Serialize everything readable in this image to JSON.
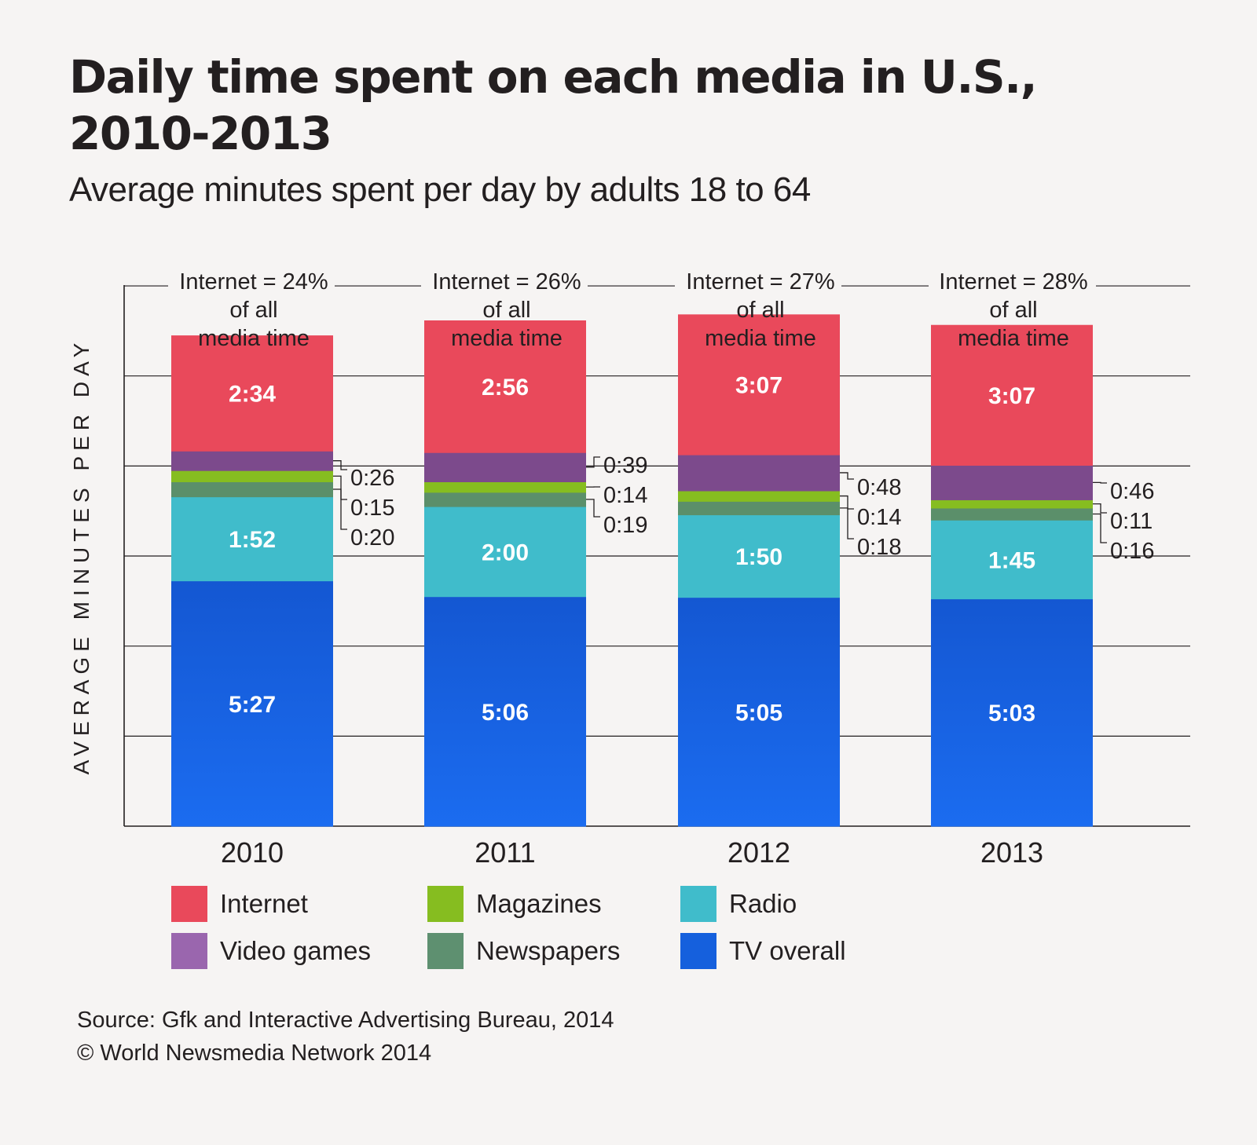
{
  "title": "Daily time spent on each media in U.S., 2010-2013",
  "subtitle": "Average minutes spent per day by adults 18 to 64",
  "y_axis_label": "AVERAGE MINUTES PER DAY",
  "chart_data": {
    "type": "bar",
    "stacked": true,
    "title": "Daily time spent on each media in U.S., 2010-2013",
    "subtitle": "Average minutes spent per day by adults 18 to 64",
    "ylabel": "AVERAGE MINUTES PER DAY",
    "xlabel": "",
    "units": "minutes",
    "categories": [
      "2010",
      "2011",
      "2012",
      "2013"
    ],
    "ylim": [
      0,
      720
    ],
    "gridline_step": 120,
    "grid": true,
    "series": [
      {
        "name": "TV overall",
        "color": "#1560dd",
        "values": [
          327,
          306,
          305,
          303
        ],
        "labels": [
          "5:27",
          "5:06",
          "5:05",
          "5:03"
        ]
      },
      {
        "name": "Radio",
        "color": "#40bccb",
        "values": [
          112,
          120,
          110,
          105
        ],
        "labels": [
          "1:52",
          "2:00",
          "1:50",
          "1:45"
        ]
      },
      {
        "name": "Newspapers",
        "color": "#5b8f6a",
        "values": [
          20,
          19,
          18,
          16
        ],
        "labels": [
          "0:20",
          "0:19",
          "0:18",
          "0:16"
        ]
      },
      {
        "name": "Magazines",
        "color": "#86bd20",
        "values": [
          15,
          14,
          14,
          11
        ],
        "labels": [
          "0:15",
          "0:14",
          "0:14",
          "0:11"
        ]
      },
      {
        "name": "Video games",
        "color": "#7c4a8c",
        "values": [
          26,
          39,
          48,
          46
        ],
        "labels": [
          "0:26",
          "0:39",
          "0:48",
          "0:46"
        ]
      },
      {
        "name": "Internet",
        "color": "#e9495b",
        "values": [
          154,
          176,
          187,
          187
        ],
        "labels": [
          "2:34",
          "2:56",
          "3:07",
          "3:07"
        ]
      }
    ],
    "annotations": [
      {
        "line1": "Internet = 24%",
        "line2": "of all",
        "line3": "media time"
      },
      {
        "line1": "Internet = 26%",
        "line2": "of all",
        "line3": "media time"
      },
      {
        "line1": "Internet = 27%",
        "line2": "of all",
        "line3": "media time"
      },
      {
        "line1": "Internet = 28%",
        "line2": "of all",
        "line3": "media time"
      }
    ]
  },
  "legend": {
    "items": [
      {
        "label": "Internet",
        "color": "#e9495b"
      },
      {
        "label": "Video games",
        "color": "#9a66ae"
      },
      {
        "label": "Magazines",
        "color": "#86bd20"
      },
      {
        "label": "Newspapers",
        "color": "#5e9070"
      },
      {
        "label": "Radio",
        "color": "#40bccb"
      },
      {
        "label": "TV overall",
        "color": "#1560dd"
      }
    ]
  },
  "source": {
    "line1": "Source: Gfk and Interactive Advertising Bureau, 2014",
    "line2": "© World Newsmedia Network 2014"
  }
}
